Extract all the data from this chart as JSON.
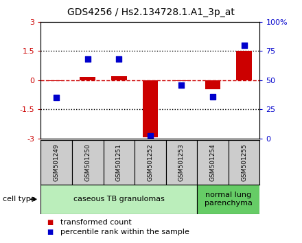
{
  "title": "GDS4256 / Hs2.134728.1.A1_3p_at",
  "samples": [
    "GSM501249",
    "GSM501250",
    "GSM501251",
    "GSM501252",
    "GSM501253",
    "GSM501254",
    "GSM501255"
  ],
  "transformed_counts": [
    -0.05,
    0.18,
    0.22,
    -2.95,
    -0.05,
    -0.45,
    1.52
  ],
  "percentile_ranks": [
    35,
    68,
    68,
    2,
    46,
    36,
    80
  ],
  "ylim_left": [
    -3,
    3
  ],
  "ylim_right": [
    0,
    100
  ],
  "yticks_left": [
    -3,
    -1.5,
    0,
    1.5,
    3
  ],
  "yticks_right": [
    0,
    25,
    50,
    75,
    100
  ],
  "ytick_labels_left": [
    "-3",
    "-1.5",
    "0",
    "1.5",
    "3"
  ],
  "ytick_labels_right": [
    "0",
    "25",
    "50",
    "75",
    "100%"
  ],
  "bar_color": "#cc0000",
  "dot_color": "#0000cc",
  "hline_color": "#cc0000",
  "dotted_line_color": "#000000",
  "cell_type_groups": [
    {
      "label": "caseous TB granulomas",
      "n_samples": 5,
      "color": "#bbeebb"
    },
    {
      "label": "normal lung\nparenchyma",
      "n_samples": 2,
      "color": "#66cc66"
    }
  ],
  "legend_bar_label": "transformed count",
  "legend_dot_label": "percentile rank within the sample",
  "cell_type_label": "cell type",
  "background_color": "#ffffff",
  "plot_bg_color": "#ffffff",
  "sample_box_color": "#cccccc",
  "title_fontsize": 10,
  "tick_fontsize": 8,
  "label_fontsize": 8,
  "sample_fontsize": 6.5,
  "legend_fontsize": 8,
  "celltype_fontsize": 8
}
